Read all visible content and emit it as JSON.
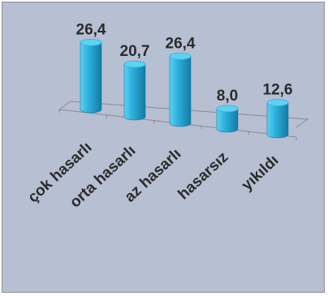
{
  "chart_data": {
    "type": "bar",
    "style": "3d-cylinder",
    "categories": [
      "çok hasarlı",
      "orta hasarlı",
      "az hasarlı",
      "hasarsız",
      "yıkıldı"
    ],
    "values": [
      26.4,
      20.7,
      26.4,
      8.0,
      12.6
    ],
    "value_labels": [
      "26,4",
      "20,7",
      "26,4",
      "8,0",
      "12,6"
    ],
    "title": "",
    "xlabel": "",
    "ylabel": "",
    "ylim": [
      0,
      30
    ],
    "grid": false,
    "legend": "none",
    "colors": {
      "bar_light": "#5fd2f2",
      "bar_mid": "#2fb2de",
      "bar_dark": "#137aa3",
      "background": "#b7bfd3",
      "floor_line": "#8a8a8a",
      "label_text": "#2b2b2b"
    }
  }
}
